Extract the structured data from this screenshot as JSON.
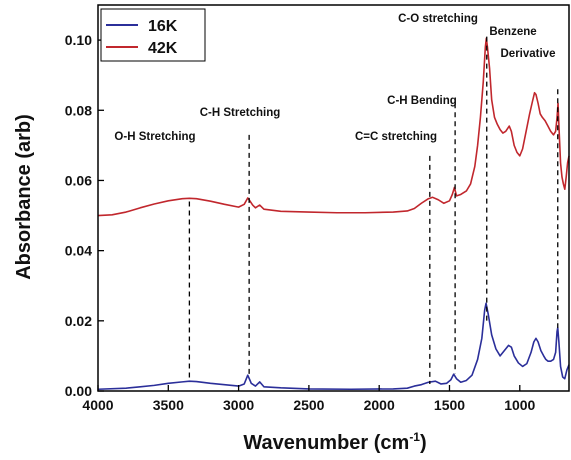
{
  "chart_data": {
    "type": "line",
    "title": "",
    "xlabel": "Wavenumber (cm",
    "xlabel_sup": "-1",
    "xlabel_close": ")",
    "ylabel": "Absorbance (arb)",
    "xlim": [
      4000,
      650
    ],
    "ylim": [
      0.0,
      0.11
    ],
    "x_ticks": [
      4000,
      3500,
      3000,
      2500,
      2000,
      1500,
      1000
    ],
    "x_tick_labels": [
      "4000",
      "3500",
      "3000",
      "2500",
      "2000",
      "1500",
      "1000"
    ],
    "y_ticks": [
      0.0,
      0.02,
      0.04,
      0.06,
      0.08,
      0.1
    ],
    "y_tick_labels": [
      "0.00",
      "0.02",
      "0.04",
      "0.06",
      "0.08",
      "0.10"
    ],
    "grid": false,
    "legend_position": "top-left",
    "series": [
      {
        "name": "16K",
        "color": "#2b2f9a",
        "points": [
          [
            4000,
            0.0005
          ],
          [
            3800,
            0.0008
          ],
          [
            3700,
            0.0012
          ],
          [
            3600,
            0.0016
          ],
          [
            3500,
            0.0022
          ],
          [
            3400,
            0.0026
          ],
          [
            3350,
            0.0028
          ],
          [
            3300,
            0.0027
          ],
          [
            3200,
            0.0022
          ],
          [
            3100,
            0.0018
          ],
          [
            3000,
            0.0014
          ],
          [
            2960,
            0.002
          ],
          [
            2935,
            0.0045
          ],
          [
            2925,
            0.0036
          ],
          [
            2910,
            0.0022
          ],
          [
            2880,
            0.0014
          ],
          [
            2850,
            0.0026
          ],
          [
            2820,
            0.0012
          ],
          [
            2700,
            0.0009
          ],
          [
            2500,
            0.0006
          ],
          [
            2200,
            0.0005
          ],
          [
            1900,
            0.0006
          ],
          [
            1800,
            0.0008
          ],
          [
            1750,
            0.0014
          ],
          [
            1700,
            0.0018
          ],
          [
            1650,
            0.0025
          ],
          [
            1600,
            0.0028
          ],
          [
            1560,
            0.002
          ],
          [
            1520,
            0.0022
          ],
          [
            1490,
            0.0032
          ],
          [
            1470,
            0.0048
          ],
          [
            1450,
            0.0035
          ],
          [
            1420,
            0.0025
          ],
          [
            1380,
            0.003
          ],
          [
            1340,
            0.0045
          ],
          [
            1300,
            0.009
          ],
          [
            1270,
            0.015
          ],
          [
            1250,
            0.023
          ],
          [
            1240,
            0.025
          ],
          [
            1225,
            0.022
          ],
          [
            1200,
            0.016
          ],
          [
            1170,
            0.012
          ],
          [
            1140,
            0.01
          ],
          [
            1110,
            0.0115
          ],
          [
            1080,
            0.013
          ],
          [
            1060,
            0.0125
          ],
          [
            1040,
            0.01
          ],
          [
            1010,
            0.008
          ],
          [
            980,
            0.007
          ],
          [
            950,
            0.0078
          ],
          [
            920,
            0.011
          ],
          [
            900,
            0.014
          ],
          [
            885,
            0.015
          ],
          [
            870,
            0.014
          ],
          [
            850,
            0.0115
          ],
          [
            830,
            0.01
          ],
          [
            815,
            0.009
          ],
          [
            800,
            0.0085
          ],
          [
            780,
            0.0085
          ],
          [
            760,
            0.009
          ],
          [
            745,
            0.011
          ],
          [
            735,
            0.017
          ],
          [
            730,
            0.018
          ],
          [
            722,
            0.014
          ],
          [
            710,
            0.007
          ],
          [
            695,
            0.004
          ],
          [
            680,
            0.0035
          ],
          [
            665,
            0.006
          ],
          [
            650,
            0.0075
          ]
        ]
      },
      {
        "name": "42K",
        "color": "#c1272d",
        "points": [
          [
            4000,
            0.05
          ],
          [
            3900,
            0.0502
          ],
          [
            3800,
            0.051
          ],
          [
            3700,
            0.0522
          ],
          [
            3600,
            0.0533
          ],
          [
            3500,
            0.0542
          ],
          [
            3400,
            0.0548
          ],
          [
            3350,
            0.0549
          ],
          [
            3300,
            0.0548
          ],
          [
            3200,
            0.0541
          ],
          [
            3100,
            0.0532
          ],
          [
            3000,
            0.0524
          ],
          [
            2960,
            0.0532
          ],
          [
            2935,
            0.055
          ],
          [
            2920,
            0.0542
          ],
          [
            2900,
            0.053
          ],
          [
            2880,
            0.0522
          ],
          [
            2850,
            0.053
          ],
          [
            2820,
            0.0518
          ],
          [
            2700,
            0.0512
          ],
          [
            2500,
            0.051
          ],
          [
            2300,
            0.0508
          ],
          [
            2100,
            0.0508
          ],
          [
            1900,
            0.051
          ],
          [
            1800,
            0.0513
          ],
          [
            1750,
            0.052
          ],
          [
            1700,
            0.0535
          ],
          [
            1650,
            0.0548
          ],
          [
            1620,
            0.0552
          ],
          [
            1580,
            0.0545
          ],
          [
            1540,
            0.0535
          ],
          [
            1500,
            0.0542
          ],
          [
            1480,
            0.056
          ],
          [
            1465,
            0.058
          ],
          [
            1450,
            0.0556
          ],
          [
            1420,
            0.056
          ],
          [
            1380,
            0.057
          ],
          [
            1350,
            0.059
          ],
          [
            1320,
            0.064
          ],
          [
            1300,
            0.07
          ],
          [
            1280,
            0.078
          ],
          [
            1260,
            0.088
          ],
          [
            1245,
            0.098
          ],
          [
            1238,
            0.1005
          ],
          [
            1230,
            0.098
          ],
          [
            1215,
            0.092
          ],
          [
            1200,
            0.083
          ],
          [
            1180,
            0.078
          ],
          [
            1160,
            0.076
          ],
          [
            1140,
            0.0745
          ],
          [
            1120,
            0.0735
          ],
          [
            1100,
            0.074
          ],
          [
            1075,
            0.0755
          ],
          [
            1060,
            0.074
          ],
          [
            1040,
            0.07
          ],
          [
            1020,
            0.068
          ],
          [
            1000,
            0.067
          ],
          [
            980,
            0.069
          ],
          [
            955,
            0.074
          ],
          [
            930,
            0.079
          ],
          [
            910,
            0.0825
          ],
          [
            895,
            0.085
          ],
          [
            885,
            0.0845
          ],
          [
            870,
            0.082
          ],
          [
            855,
            0.079
          ],
          [
            840,
            0.078
          ],
          [
            820,
            0.077
          ],
          [
            800,
            0.0755
          ],
          [
            780,
            0.074
          ],
          [
            760,
            0.073
          ],
          [
            745,
            0.074
          ],
          [
            735,
            0.078
          ],
          [
            728,
            0.082
          ],
          [
            720,
            0.074
          ],
          [
            710,
            0.065
          ],
          [
            700,
            0.061
          ],
          [
            690,
            0.059
          ],
          [
            680,
            0.0575
          ],
          [
            670,
            0.061
          ],
          [
            660,
            0.065
          ],
          [
            650,
            0.067
          ]
        ]
      }
    ],
    "annotations": [
      {
        "text": "O-H Stretching",
        "x": 3350,
        "line_top": 0.054,
        "line_bottom": 0.003
      },
      {
        "text": "C-H Stretching",
        "x": 2925,
        "line_top": 0.073,
        "line_bottom": 0.004
      },
      {
        "text": "C=C stretching",
        "x": 1640,
        "line_top": 0.067,
        "line_bottom": 0.002
      },
      {
        "text": "C-H Bending",
        "x": 1460,
        "line_top": 0.082,
        "line_bottom": 0.005
      },
      {
        "text": "C-O stretching",
        "x": 1235,
        "line_top": 0.101,
        "line_bottom": 0.02
      },
      {
        "text": "Benzene",
        "x": 850
      },
      {
        "text": "Derivative",
        "x": 730,
        "line_top": 0.086,
        "line_bottom": 0.018
      }
    ]
  }
}
